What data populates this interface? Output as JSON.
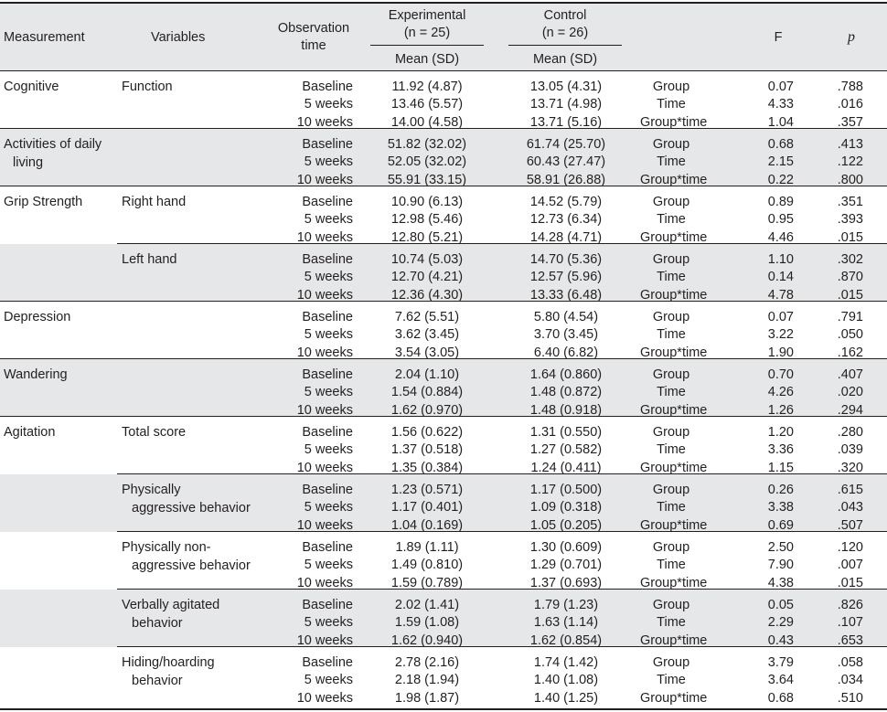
{
  "header": {
    "measurement": "Measurement",
    "variables": "Variables",
    "observation_line1": "Observation",
    "observation_line2": "time",
    "experimental": "Experimental",
    "experimental_n": "(n = 25)",
    "control": "Control",
    "control_n": "(n = 26)",
    "mean_sd_exp": "Mean (SD)",
    "mean_sd_ctl": "Mean (SD)",
    "f": "F",
    "p": "p"
  },
  "groups": [
    {
      "measurement": [
        "Cognitive"
      ],
      "variable": [
        "Function"
      ],
      "shaded": false,
      "rows": [
        {
          "time": "Baseline",
          "exp": "11.92 (4.87)",
          "ctl": "13.05 (4.31)",
          "effect": "Group",
          "f": "0.07",
          "p": ".788"
        },
        {
          "time": "5 weeks",
          "exp": "13.46 (5.57)",
          "ctl": "13.71 (4.98)",
          "effect": "Time",
          "f": "4.33",
          "p": ".016"
        },
        {
          "time": "10 weeks",
          "exp": "14.00 (4.58)",
          "ctl": "13.71 (5.16)",
          "effect": "Group*time",
          "f": "1.04",
          "p": ".357"
        }
      ]
    },
    {
      "measurement": [
        "Activities of daily",
        "living"
      ],
      "variable": [],
      "shaded": true,
      "rows": [
        {
          "time": "Baseline",
          "exp": "51.82 (32.02)",
          "ctl": "61.74 (25.70)",
          "effect": "Group",
          "f": "0.68",
          "p": ".413"
        },
        {
          "time": "5 weeks",
          "exp": "52.05 (32.02)",
          "ctl": "60.43 (27.47)",
          "effect": "Time",
          "f": "2.15",
          "p": ".122"
        },
        {
          "time": "10 weeks",
          "exp": "55.91 (33.15)",
          "ctl": "58.91 (26.88)",
          "effect": "Group*time",
          "f": "0.22",
          "p": ".800"
        }
      ]
    },
    {
      "measurement": [
        "Grip Strength"
      ],
      "variable": [
        "Right hand"
      ],
      "shaded": false,
      "rows": [
        {
          "time": "Baseline",
          "exp": "10.90 (6.13)",
          "ctl": "14.52 (5.79)",
          "effect": "Group",
          "f": "0.89",
          "p": ".351"
        },
        {
          "time": "5 weeks",
          "exp": "12.98 (5.46)",
          "ctl": "12.73 (6.34)",
          "effect": "Time",
          "f": "0.95",
          "p": ".393"
        },
        {
          "time": "10 weeks",
          "exp": "12.80 (5.21)",
          "ctl": "14.28 (4.71)",
          "effect": "Group*time",
          "f": "4.46",
          "p": ".015"
        }
      ]
    },
    {
      "measurement": [],
      "variable": [
        "Left hand"
      ],
      "shaded": true,
      "rows": [
        {
          "time": "Baseline",
          "exp": "10.74 (5.03)",
          "ctl": "14.70 (5.36)",
          "effect": "Group",
          "f": "1.10",
          "p": ".302"
        },
        {
          "time": "5 weeks",
          "exp": "12.70 (4.21)",
          "ctl": "12.57 (5.96)",
          "effect": "Time",
          "f": "0.14",
          "p": ".870"
        },
        {
          "time": "10 weeks",
          "exp": "12.36 (4.30)",
          "ctl": "13.33 (6.48)",
          "effect": "Group*time",
          "f": "4.78",
          "p": ".015"
        }
      ]
    },
    {
      "measurement": [
        "Depression"
      ],
      "variable": [],
      "shaded": false,
      "rows": [
        {
          "time": "Baseline",
          "exp": "7.62 (5.51)",
          "ctl": "5.80 (4.54)",
          "effect": "Group",
          "f": "0.07",
          "p": ".791"
        },
        {
          "time": "5 weeks",
          "exp": "3.62 (3.45)",
          "ctl": "3.70 (3.45)",
          "effect": "Time",
          "f": "3.22",
          "p": ".050"
        },
        {
          "time": "10 weeks",
          "exp": "3.54 (3.05)",
          "ctl": "6.40 (6.82)",
          "effect": "Group*time",
          "f": "1.90",
          "p": ".162"
        }
      ]
    },
    {
      "measurement": [
        "Wandering"
      ],
      "variable": [],
      "shaded": true,
      "rows": [
        {
          "time": "Baseline",
          "exp": "2.04 (1.10)",
          "ctl": "1.64 (0.860)",
          "effect": "Group",
          "f": "0.70",
          "p": ".407"
        },
        {
          "time": "5 weeks",
          "exp": "1.54 (0.884)",
          "ctl": "1.48 (0.872)",
          "effect": "Time",
          "f": "4.26",
          "p": ".020"
        },
        {
          "time": "10 weeks",
          "exp": "1.62 (0.970)",
          "ctl": "1.48 (0.918)",
          "effect": "Group*time",
          "f": "1.26",
          "p": ".294"
        }
      ]
    },
    {
      "measurement": [
        "Agitation"
      ],
      "variable": [
        "Total score"
      ],
      "shaded": false,
      "rows": [
        {
          "time": "Baseline",
          "exp": "1.56 (0.622)",
          "ctl": "1.31 (0.550)",
          "effect": "Group",
          "f": "1.20",
          "p": ".280"
        },
        {
          "time": "5 weeks",
          "exp": "1.37 (0.518)",
          "ctl": "1.27 (0.582)",
          "effect": "Time",
          "f": "3.36",
          "p": ".039"
        },
        {
          "time": "10 weeks",
          "exp": "1.35 (0.384)",
          "ctl": "1.24 (0.411)",
          "effect": "Group*time",
          "f": "1.15",
          "p": ".320"
        }
      ]
    },
    {
      "measurement": [],
      "variable": [
        "Physically",
        "aggressive behavior"
      ],
      "shaded": true,
      "rows": [
        {
          "time": "Baseline",
          "exp": "1.23 (0.571)",
          "ctl": "1.17 (0.500)",
          "effect": "Group",
          "f": "0.26",
          "p": ".615"
        },
        {
          "time": "5 weeks",
          "exp": "1.17 (0.401)",
          "ctl": "1.09 (0.318)",
          "effect": "Time",
          "f": "3.38",
          "p": ".043"
        },
        {
          "time": "10 weeks",
          "exp": "1.04 (0.169)",
          "ctl": "1.05 (0.205)",
          "effect": "Group*time",
          "f": "0.69",
          "p": ".507"
        }
      ]
    },
    {
      "measurement": [],
      "variable": [
        "Physically non-",
        "aggressive behavior"
      ],
      "shaded": false,
      "rows": [
        {
          "time": "Baseline",
          "exp": "1.89 (1.11)",
          "ctl": "1.30 (0.609)",
          "effect": "Group",
          "f": "2.50",
          "p": ".120"
        },
        {
          "time": "5 weeks",
          "exp": "1.49 (0.810)",
          "ctl": "1.29 (0.701)",
          "effect": "Time",
          "f": "7.90",
          "p": ".007"
        },
        {
          "time": "10 weeks",
          "exp": "1.59 (0.789)",
          "ctl": "1.37 (0.693)",
          "effect": "Group*time",
          "f": "4.38",
          "p": ".015"
        }
      ]
    },
    {
      "measurement": [],
      "variable": [
        "Verbally agitated",
        "behavior"
      ],
      "shaded": true,
      "rows": [
        {
          "time": "Baseline",
          "exp": "2.02 (1.41)",
          "ctl": "1.79 (1.23)",
          "effect": "Group",
          "f": "0.05",
          "p": ".826"
        },
        {
          "time": "5 weeks",
          "exp": "1.59 (1.08)",
          "ctl": "1.63 (1.14)",
          "effect": "Time",
          "f": "2.29",
          "p": ".107"
        },
        {
          "time": "10 weeks",
          "exp": "1.62 (0.940)",
          "ctl": "1.62 (0.854)",
          "effect": "Group*time",
          "f": "0.43",
          "p": ".653"
        }
      ]
    },
    {
      "measurement": [],
      "variable": [
        "Hiding/hoarding",
        "behavior"
      ],
      "shaded": false,
      "rows": [
        {
          "time": "Baseline",
          "exp": "2.78 (2.16)",
          "ctl": "1.74 (1.42)",
          "effect": "Group",
          "f": "3.79",
          "p": ".058"
        },
        {
          "time": "5 weeks",
          "exp": "2.18 (1.94)",
          "ctl": "1.40 (1.08)",
          "effect": "Time",
          "f": "3.64",
          "p": ".034"
        },
        {
          "time": "10 weeks",
          "exp": "1.98 (1.87)",
          "ctl": "1.40 (1.25)",
          "effect": "Group*time",
          "f": "0.68",
          "p": ".510"
        }
      ]
    }
  ]
}
